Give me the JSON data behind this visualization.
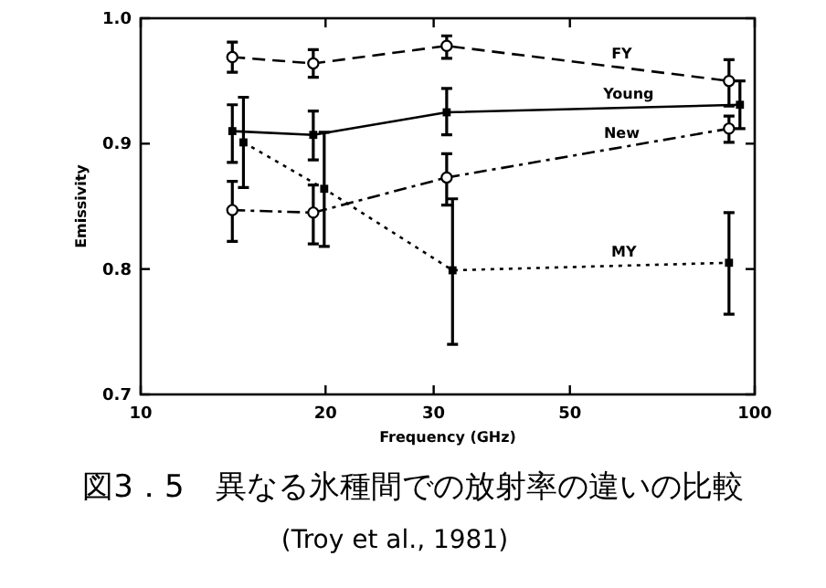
{
  "chart_data": {
    "type": "line",
    "title": "図3．5　異なる氷種間での放射率の違いの比較",
    "xlabel": "Frequency (GHz)",
    "ylabel": "Emissivity",
    "annotations": [
      "(Troy et al., 1981)"
    ],
    "log": "x",
    "xlim": [
      10,
      100
    ],
    "xticks": [
      10,
      20,
      30,
      50,
      100
    ],
    "ylim": [
      0.7,
      1.0
    ],
    "yticks": [
      0.7,
      0.8,
      0.9,
      {
        "value": 1.0,
        "label": "1.0"
      }
    ],
    "grid": false,
    "series": [
      {
        "name": "FY",
        "color": "#000000",
        "line_style": "dashed",
        "marker": "circle",
        "x": [
          14.1,
          19.1,
          31.5,
          90.8
        ],
        "values": [
          0.969,
          0.964,
          0.978,
          0.95
        ],
        "errors": [
          [
            0.957,
            0.981
          ],
          [
            0.953,
            0.975
          ],
          [
            0.968,
            0.986
          ],
          [
            0.93,
            0.967
          ]
        ]
      },
      {
        "name": "Young",
        "color": "#000000",
        "line_style": "solid",
        "marker": "square",
        "x": [
          14.1,
          19.1,
          31.5,
          94.6
        ],
        "values": [
          0.91,
          0.907,
          0.925,
          0.931
        ],
        "errors": [
          [
            0.885,
            0.931
          ],
          [
            0.887,
            0.926
          ],
          [
            0.907,
            0.944
          ],
          [
            0.912,
            0.95
          ]
        ]
      },
      {
        "name": "New",
        "color": "#000000",
        "line_style": "dashdot",
        "marker": "circle",
        "x": [
          14.1,
          19.1,
          31.5,
          90.8
        ],
        "values": [
          0.847,
          0.845,
          0.873,
          0.912
        ],
        "errors": [
          [
            0.822,
            0.87
          ],
          [
            0.82,
            0.867
          ],
          [
            0.851,
            0.892
          ],
          [
            0.901,
            0.922
          ]
        ]
      },
      {
        "name": "MY",
        "color": "#000000",
        "line_style": "dotted",
        "marker": "square",
        "x": [
          14.7,
          19.9,
          32.2,
          90.8
        ],
        "values": [
          0.901,
          0.864,
          0.799,
          0.805
        ],
        "errors": [
          [
            0.865,
            0.937
          ],
          [
            0.818,
            0.909
          ],
          [
            0.74,
            0.856
          ],
          [
            0.764,
            0.845
          ]
        ]
      }
    ]
  }
}
